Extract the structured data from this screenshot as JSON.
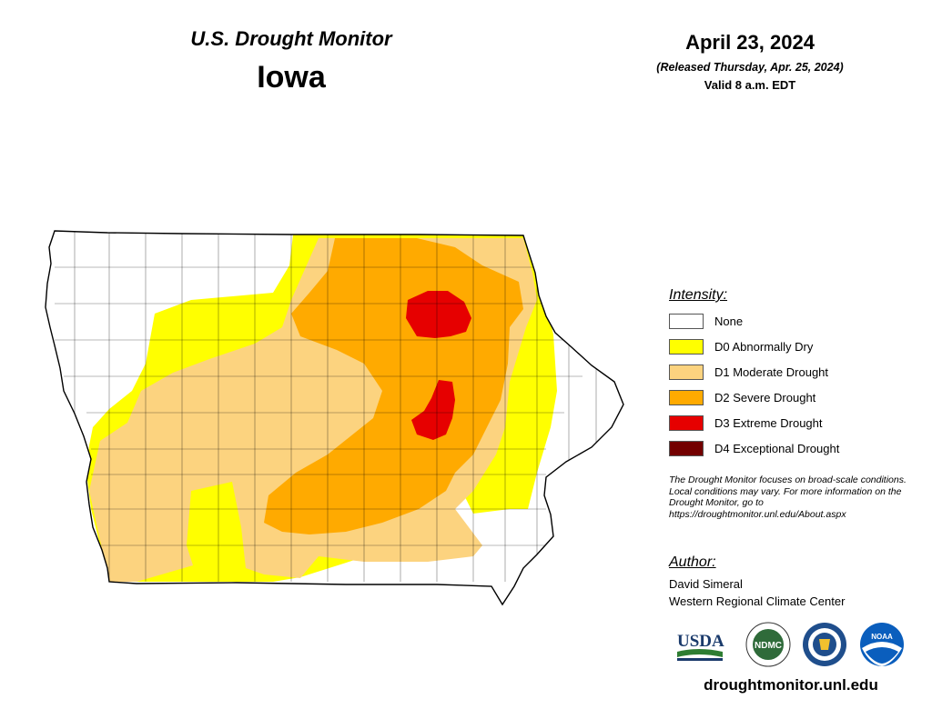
{
  "header": {
    "product_title": "U.S. Drought Monitor",
    "state_name": "Iowa",
    "map_date": "April 23, 2024",
    "release_note": "(Released Thursday, Apr. 25, 2024)",
    "valid_time": "Valid 8 a.m. EDT"
  },
  "legend": {
    "title": "Intensity:",
    "items": [
      {
        "label": "None",
        "color": "#ffffff"
      },
      {
        "label": "D0 Abnormally Dry",
        "color": "#ffff00"
      },
      {
        "label": "D1 Moderate Drought",
        "color": "#fcd37f"
      },
      {
        "label": "D2 Severe Drought",
        "color": "#ffaa00"
      },
      {
        "label": "D3 Extreme Drought",
        "color": "#e60000"
      },
      {
        "label": "D4 Exceptional Drought",
        "color": "#730000"
      }
    ]
  },
  "disclaimer": "The Drought Monitor focuses on broad-scale conditions. Local conditions may vary. For more information on the Drought Monitor, go to https://droughtmonitor.unl.edu/About.aspx",
  "author": {
    "title": "Author:",
    "name": "David Simeral",
    "organization": "Western Regional Climate Center"
  },
  "logos": {
    "usda": "USDA",
    "ndmc": "NDMC",
    "noaa": "NOAA",
    "commerce_icon": "dept-of-commerce-seal-icon"
  },
  "site_url": "droughtmonitor.unl.edu"
}
